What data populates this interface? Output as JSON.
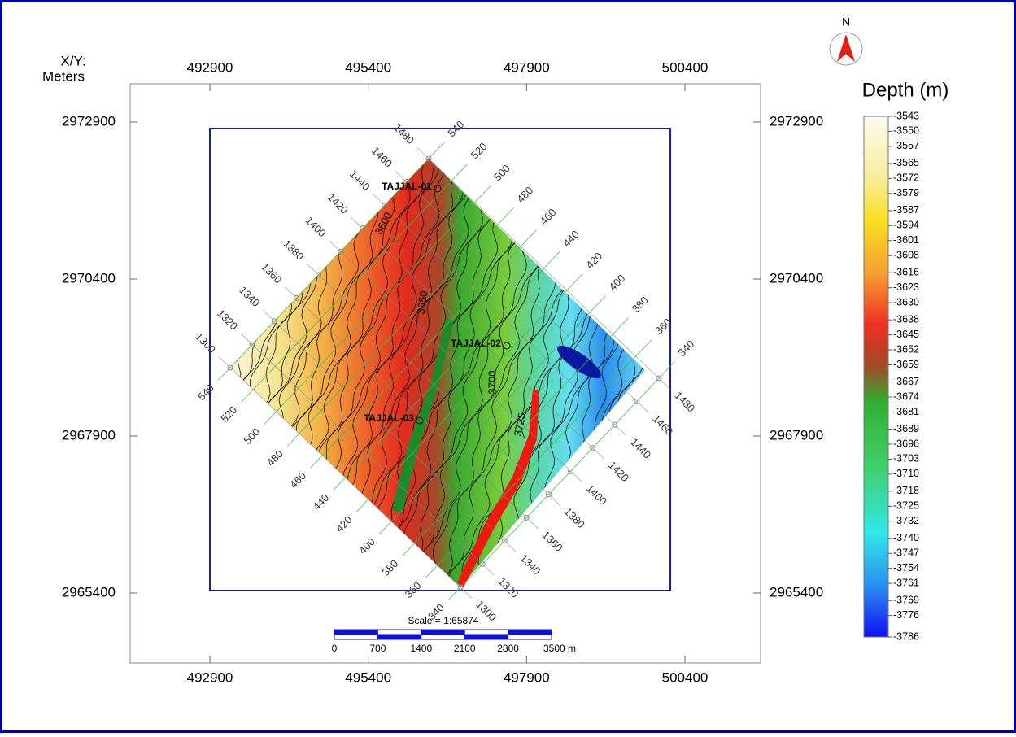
{
  "map": {
    "corner_label": [
      "X/Y:",
      "Meters"
    ],
    "x_ticks": [
      492900,
      495400,
      497900,
      500400
    ],
    "y_ticks": [
      2972900,
      2970400,
      2967900,
      2965400
    ],
    "inlines": [
      1300,
      1320,
      1340,
      1360,
      1380,
      1400,
      1420,
      1440,
      1460,
      1480
    ],
    "crosslines": [
      340,
      360,
      380,
      400,
      420,
      440,
      460,
      480,
      500,
      520,
      540
    ],
    "wells": [
      "TAJJAL-01",
      "TAJJAL-02",
      "TAJJAL-03"
    ],
    "contour_labels": [
      "3600",
      "3650",
      "3700",
      "3725"
    ],
    "scale": {
      "title": "Scale = 1:65874",
      "labels": [
        "0",
        "700",
        "1400",
        "2100",
        "2800",
        "3500 m"
      ]
    }
  },
  "legend": {
    "north": "N",
    "title": "Depth (m)",
    "values": [
      -3543,
      -3550,
      -3557,
      -3565,
      -3572,
      -3579,
      -3587,
      -3594,
      -3601,
      -3608,
      -3616,
      -3623,
      -3630,
      -3638,
      -3645,
      -3652,
      -3659,
      -3667,
      -3674,
      -3681,
      -3689,
      -3696,
      -3703,
      -3710,
      -3718,
      -3725,
      -3732,
      -3740,
      -3747,
      -3754,
      -3761,
      -3769,
      -3776,
      -3786
    ]
  }
}
